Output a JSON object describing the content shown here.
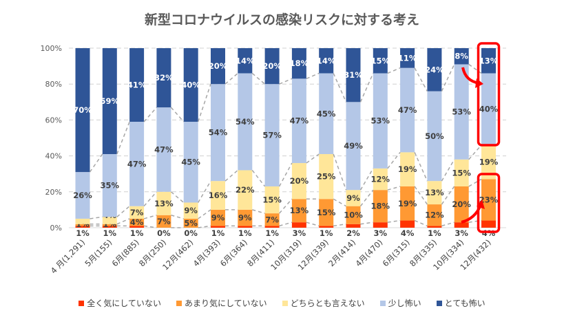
{
  "chart_data": {
    "type": "bar",
    "stacked": "100%",
    "title": "新型コロナウイルスの感染リスクに対する考え",
    "categories": [
      "4 月(1,291)",
      "5月(155)",
      "6月(885)",
      "8月(250)",
      "12月(462)",
      "4月(393)",
      "6月(364)",
      "8月(411)",
      "10月(319)",
      "12月(339)",
      "2月(414)",
      "4月(470)",
      "6月(315)",
      "8月(335)",
      "10月(334)",
      "12月(432)"
    ],
    "yticks": [
      "0%",
      "20%",
      "40%",
      "60%",
      "80%",
      "100%"
    ],
    "ylim": [
      0,
      100
    ],
    "grid": true,
    "legend_position": "bottom",
    "series": [
      {
        "name": "全く気にしていない",
        "color": "#ff3300",
        "values": [
          1,
          1,
          1,
          0,
          0,
          1,
          1,
          1,
          3,
          1,
          2,
          3,
          4,
          1,
          3,
          4
        ]
      },
      {
        "name": "あまり気にしていない",
        "color": "#ff9933",
        "values": [
          1,
          1,
          4,
          7,
          5,
          9,
          9,
          7,
          13,
          15,
          10,
          18,
          19,
          12,
          20,
          23
        ]
      },
      {
        "name": "どちらとも言えない",
        "color": "#ffe699",
        "values": [
          3,
          4,
          7,
          13,
          9,
          16,
          22,
          15,
          20,
          25,
          9,
          12,
          19,
          13,
          15,
          19
        ]
      },
      {
        "name": "少し怖い",
        "color": "#b4c7e7",
        "values": [
          26,
          35,
          47,
          47,
          45,
          54,
          54,
          57,
          47,
          45,
          49,
          53,
          47,
          50,
          53,
          40
        ]
      },
      {
        "name": "とても怖い",
        "color": "#2f5597",
        "values": [
          70,
          59,
          41,
          32,
          40,
          20,
          14,
          20,
          18,
          14,
          31,
          15,
          11,
          24,
          8,
          13
        ]
      }
    ],
    "annotations": {
      "highlight_color": "#ff0000",
      "highlighted_category": "12月(432)"
    }
  }
}
